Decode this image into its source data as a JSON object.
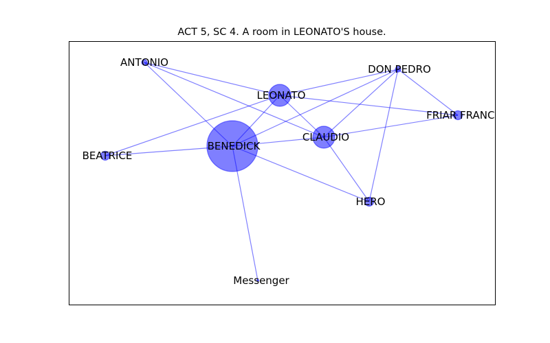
{
  "title": "ACT 5, SC 4. A room in LEONATO'S house.",
  "colors": {
    "node_fill": "#0000ff",
    "node_fill_opacity": 0.5,
    "node_stroke": "#0000ff",
    "edge": "#0000ff",
    "edge_opacity": 0.5,
    "frame": "#000000"
  },
  "nodes": [
    {
      "id": "antonio",
      "label": "ANTONIO",
      "size": 1
    },
    {
      "id": "don_pedro",
      "label": "DON PEDRO",
      "size": 1
    },
    {
      "id": "leonato",
      "label": "LEONATO",
      "size": 3
    },
    {
      "id": "friar_francis",
      "label": "FRIAR FRANCI",
      "size": 1.5
    },
    {
      "id": "claudio",
      "label": "CLAUDIO",
      "size": 3
    },
    {
      "id": "benedick",
      "label": "BENEDICK",
      "size": 8
    },
    {
      "id": "beatrice",
      "label": "BEATRICE",
      "size": 1.5
    },
    {
      "id": "hero",
      "label": "HERO",
      "size": 1.5
    },
    {
      "id": "messenger",
      "label": "Messenger",
      "size": 0.5
    }
  ],
  "edges": [
    [
      "antonio",
      "leonato"
    ],
    [
      "antonio",
      "claudio"
    ],
    [
      "antonio",
      "benedick"
    ],
    [
      "don_pedro",
      "leonato"
    ],
    [
      "don_pedro",
      "claudio"
    ],
    [
      "don_pedro",
      "benedick"
    ],
    [
      "don_pedro",
      "hero"
    ],
    [
      "don_pedro",
      "friar_francis"
    ],
    [
      "leonato",
      "friar_francis"
    ],
    [
      "leonato",
      "claudio"
    ],
    [
      "leonato",
      "benedick"
    ],
    [
      "leonato",
      "beatrice"
    ],
    [
      "claudio",
      "friar_francis"
    ],
    [
      "claudio",
      "benedick"
    ],
    [
      "claudio",
      "hero"
    ],
    [
      "benedick",
      "beatrice"
    ],
    [
      "benedick",
      "hero"
    ],
    [
      "benedick",
      "messenger"
    ]
  ]
}
